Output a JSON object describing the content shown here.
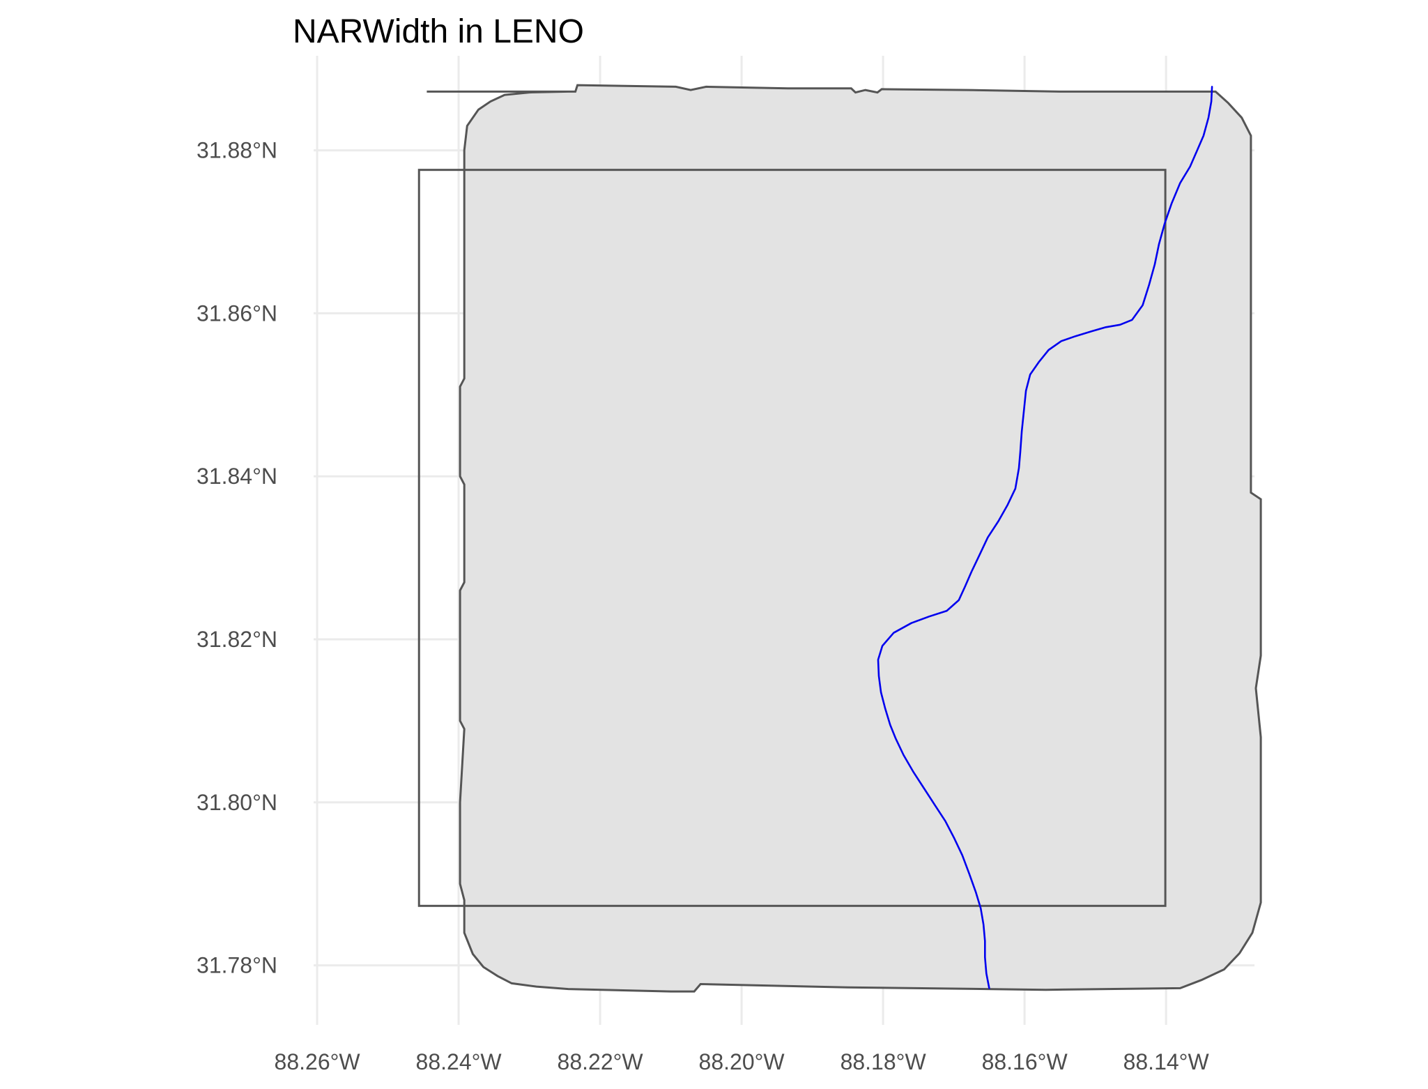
{
  "title": "NARWidth in LENO",
  "axes": {
    "x_ticks": [
      {
        "value": -88.26,
        "label": "88.26°W"
      },
      {
        "value": -88.24,
        "label": "88.24°W"
      },
      {
        "value": -88.22,
        "label": "88.22°W"
      },
      {
        "value": -88.2,
        "label": "88.20°W"
      },
      {
        "value": -88.18,
        "label": "88.18°W"
      },
      {
        "value": -88.16,
        "label": "88.16°W"
      },
      {
        "value": -88.14,
        "label": "88.14°W"
      }
    ],
    "y_ticks": [
      {
        "value": 31.88,
        "label": "31.88°N"
      },
      {
        "value": 31.86,
        "label": "31.86°N"
      },
      {
        "value": 31.84,
        "label": "31.84°N"
      },
      {
        "value": 31.82,
        "label": "31.82°N"
      },
      {
        "value": 31.8,
        "label": "31.80°N"
      },
      {
        "value": 31.78,
        "label": "31.78°N"
      }
    ],
    "xlim": [
      -88.2605,
      -88.1275
    ],
    "ylim": [
      31.7727,
      31.8916
    ],
    "grid": true
  },
  "colors": {
    "background": "#ffffff",
    "grid": "#ebebeb",
    "buffer_fill": "#e3e3e3",
    "outline": "#555555",
    "river": "#0000ee",
    "tick_label": "#4d4d4d"
  },
  "map_layers": {
    "site_box": {
      "lon": [
        -88.2456,
        -88.1401
      ],
      "lat": [
        31.7873,
        31.8776
      ]
    },
    "buffer_outline": [
      [
        -88.2445,
        31.8872
      ],
      [
        -88.2235,
        31.8872
      ],
      [
        -88.2232,
        31.888
      ],
      [
        -88.2093,
        31.8878
      ],
      [
        -88.2072,
        31.8874
      ],
      [
        -88.205,
        31.8878
      ],
      [
        -88.1935,
        31.8876
      ],
      [
        -88.1845,
        31.8876
      ],
      [
        -88.1839,
        31.8871
      ],
      [
        -88.1825,
        31.8874
      ],
      [
        -88.1808,
        31.8871
      ],
      [
        -88.1802,
        31.8875
      ],
      [
        -88.168,
        31.8874
      ],
      [
        -88.155,
        31.8872
      ],
      [
        -88.133,
        31.8872
      ],
      [
        -88.1312,
        31.8858
      ],
      [
        -88.1293,
        31.884
      ],
      [
        -88.128,
        31.8818
      ],
      [
        -88.128,
        31.862
      ],
      [
        -88.128,
        31.838
      ],
      [
        -88.1266,
        31.8372
      ],
      [
        -88.1266,
        31.818
      ],
      [
        -88.1273,
        31.814
      ],
      [
        -88.1266,
        31.808
      ],
      [
        -88.1266,
        31.7877
      ],
      [
        -88.1278,
        31.784
      ],
      [
        -88.1296,
        31.7815
      ],
      [
        -88.1318,
        31.7795
      ],
      [
        -88.135,
        31.7782
      ],
      [
        -88.138,
        31.7772
      ],
      [
        -88.157,
        31.777
      ],
      [
        -88.185,
        31.7773
      ],
      [
        -88.2058,
        31.7777
      ],
      [
        -88.2067,
        31.7768
      ],
      [
        -88.21,
        31.7768
      ],
      [
        -88.2245,
        31.7771
      ],
      [
        -88.229,
        31.7774
      ],
      [
        -88.2325,
        31.7778
      ],
      [
        -88.2345,
        31.7787
      ],
      [
        -88.2365,
        31.7798
      ],
      [
        -88.238,
        31.7814
      ],
      [
        -88.2392,
        31.784
      ],
      [
        -88.2392,
        31.788
      ],
      [
        -88.2398,
        31.79
      ],
      [
        -88.2398,
        31.8
      ],
      [
        -88.2392,
        31.809
      ],
      [
        -88.2398,
        31.81
      ],
      [
        -88.2398,
        31.826
      ],
      [
        -88.2392,
        31.827
      ],
      [
        -88.2392,
        31.839
      ],
      [
        -88.2398,
        31.84
      ],
      [
        -88.2398,
        31.851
      ],
      [
        -88.2392,
        31.852
      ],
      [
        -88.2392,
        31.86
      ],
      [
        -88.2392,
        31.866
      ],
      [
        -88.2392,
        31.88
      ],
      [
        -88.2388,
        31.883
      ],
      [
        -88.2372,
        31.885
      ],
      [
        -88.2355,
        31.886
      ],
      [
        -88.2335,
        31.8868
      ],
      [
        -88.23,
        31.8871
      ],
      [
        -88.2245,
        31.8872
      ]
    ],
    "river": [
      [
        -88.1335,
        31.8878
      ],
      [
        -88.1336,
        31.886
      ],
      [
        -88.134,
        31.884
      ],
      [
        -88.1347,
        31.8818
      ],
      [
        -88.1356,
        31.88
      ],
      [
        -88.1366,
        31.878
      ],
      [
        -88.138,
        31.876
      ],
      [
        -88.1392,
        31.8735
      ],
      [
        -88.1402,
        31.871
      ],
      [
        -88.141,
        31.8685
      ],
      [
        -88.1416,
        31.866
      ],
      [
        -88.1424,
        31.8635
      ],
      [
        -88.1433,
        31.861
      ],
      [
        -88.1448,
        31.8592
      ],
      [
        -88.1465,
        31.8586
      ],
      [
        -88.1485,
        31.8583
      ],
      [
        -88.1505,
        31.8578
      ],
      [
        -88.1528,
        31.8572
      ],
      [
        -88.1548,
        31.8566
      ],
      [
        -88.1566,
        31.8555
      ],
      [
        -88.158,
        31.854
      ],
      [
        -88.1592,
        31.8525
      ],
      [
        -88.1598,
        31.8505
      ],
      [
        -88.1601,
        31.848
      ],
      [
        -88.1604,
        31.8455
      ],
      [
        -88.1606,
        31.843
      ],
      [
        -88.1608,
        31.841
      ],
      [
        -88.1613,
        31.8385
      ],
      [
        -88.1624,
        31.8365
      ],
      [
        -88.1637,
        31.8345
      ],
      [
        -88.1652,
        31.8325
      ],
      [
        -88.1664,
        31.8303
      ],
      [
        -88.1675,
        31.8283
      ],
      [
        -88.1684,
        31.8265
      ],
      [
        -88.1693,
        31.8248
      ],
      [
        -88.171,
        31.8235
      ],
      [
        -88.1735,
        31.8228
      ],
      [
        -88.176,
        31.822
      ],
      [
        -88.1785,
        31.8208
      ],
      [
        -88.1801,
        31.8192
      ],
      [
        -88.1807,
        31.8175
      ],
      [
        -88.1806,
        31.8155
      ],
      [
        -88.1803,
        31.8135
      ],
      [
        -88.1797,
        31.8115
      ],
      [
        -88.179,
        31.8095
      ],
      [
        -88.1782,
        31.8078
      ],
      [
        -88.1771,
        31.8058
      ],
      [
        -88.1757,
        31.8037
      ],
      [
        -88.1742,
        31.8017
      ],
      [
        -88.1727,
        31.7997
      ],
      [
        -88.1712,
        31.7977
      ],
      [
        -88.17,
        31.7957
      ],
      [
        -88.1688,
        31.7935
      ],
      [
        -88.1678,
        31.7912
      ],
      [
        -88.1669,
        31.789
      ],
      [
        -88.1662,
        31.787
      ],
      [
        -88.1658,
        31.785
      ],
      [
        -88.1656,
        31.783
      ],
      [
        -88.1656,
        31.781
      ],
      [
        -88.1654,
        31.779
      ],
      [
        -88.165,
        31.7772
      ]
    ]
  }
}
